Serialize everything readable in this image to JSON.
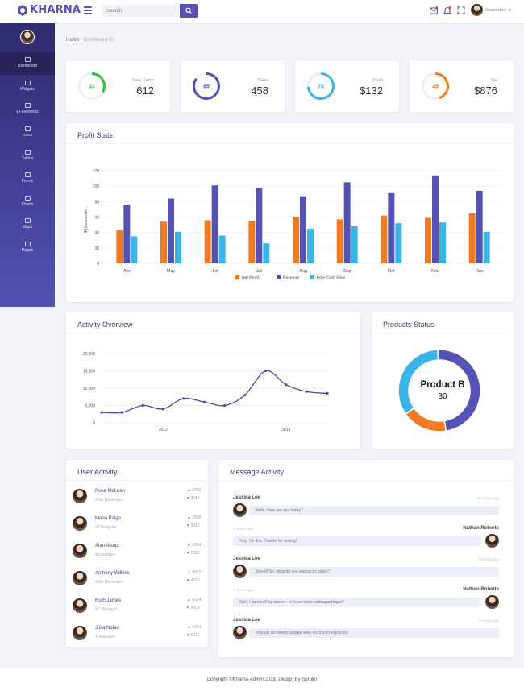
{
  "app": {
    "brand": "KHARNA",
    "search_placeholder": "Search",
    "user": "Jessica Lee"
  },
  "sidebar": {
    "items": [
      "Dashboard",
      "Widgets",
      "UI Elements",
      "Icons",
      "Tables",
      "Forms",
      "Charts",
      "Maps",
      "Pages"
    ]
  },
  "breadcrumb": {
    "home": "Home",
    "current": "Dashboard 01"
  },
  "stats": [
    {
      "label": "New Users",
      "value": "612",
      "ring": "33",
      "color": "#2fbf3f",
      "pct": 0.33
    },
    {
      "label": "Sales",
      "value": "458",
      "ring": "85",
      "color": "#5552b5",
      "pct": 0.85
    },
    {
      "label": "Profit",
      "value": "$132",
      "ring": "74",
      "color": "#3bb5e8",
      "pct": 0.74
    },
    {
      "label": "Tax",
      "value": "$876",
      "ring": "45",
      "color": "#f07b23",
      "pct": 0.45
    }
  ],
  "profit": {
    "title": "Profit Stats",
    "chart_data": {
      "type": "bar",
      "categories": [
        "Apr",
        "May",
        "Jun",
        "Jul",
        "Aug",
        "Sep",
        "Oct",
        "Nov",
        "Dec"
      ],
      "series": [
        {
          "name": "Net Profit",
          "color": "#f07b23",
          "values": [
            43,
            54,
            56,
            55,
            60,
            57,
            62,
            59,
            65
          ]
        },
        {
          "name": "Revenue",
          "color": "#5552b5",
          "values": [
            76,
            84,
            101,
            98,
            87,
            105,
            91,
            114,
            94
          ]
        },
        {
          "name": "Free Cash Flow",
          "color": "#3bb5e8",
          "values": [
            35,
            41,
            36,
            26,
            45,
            48,
            52,
            53,
            41
          ]
        }
      ],
      "ylabel": "$ (thousands)",
      "yticks": [
        "0",
        "20",
        "40",
        "60",
        "80",
        "100",
        "120"
      ],
      "ylim": [
        0,
        120
      ]
    }
  },
  "activity": {
    "title": "Activity Overview",
    "chart_data": {
      "type": "line",
      "x": [
        2011.0,
        2011.33,
        2011.67,
        2012.0,
        2012.33,
        2012.67,
        2013.0,
        2013.33,
        2013.67,
        2014.0,
        2014.33,
        2014.67
      ],
      "values": [
        3000,
        3000,
        5000,
        4000,
        7000,
        6000,
        5000,
        8000,
        15000,
        11000,
        9000,
        8500
      ],
      "color": "#4c48b0",
      "yticks": [
        "0",
        "5,000",
        "10,000",
        "15,000",
        "20,000"
      ],
      "xticks": [
        "2012",
        "2014"
      ],
      "ylim": [
        0,
        20000
      ]
    }
  },
  "products": {
    "title": "Products Status",
    "center_name": "Product B",
    "center_value": "30",
    "chart_data": {
      "type": "pie",
      "slices": [
        {
          "color": "#5552b5",
          "value": 48
        },
        {
          "color": "#f07b23",
          "value": 18
        },
        {
          "color": "#3bb5e8",
          "value": 34
        }
      ]
    }
  },
  "users": {
    "title": "User Activity",
    "rows": [
      {
        "name": "Rose McLean",
        "role": "Web Developer",
        "up": "3750",
        "down": "3745"
      },
      {
        "name": "Maria Paige",
        "role": "UI Designer",
        "up": "2650",
        "down": "3646"
      },
      {
        "name": "Alan Alsop",
        "role": "Accountant",
        "up": "5334",
        "down": "2582"
      },
      {
        "name": "Anthony Wilkins",
        "role": "Web Developer",
        "up": "4822",
        "down": "4812"
      },
      {
        "name": "Ruth James",
        "role": "Sr. Manager",
        "up": "4324",
        "down": "3425"
      },
      {
        "name": "Julia Nolan",
        "role": "Jr.Manager",
        "up": "6754",
        "down": "6576"
      }
    ]
  },
  "messages": {
    "title": "Message Activity",
    "items": [
      {
        "name": "Jessica Lee",
        "time": "10 Hours Ago",
        "text": "Hello. How are you today?",
        "side": "left"
      },
      {
        "name": "Nathan Roberts",
        "time": "9 Hours Ago",
        "text": "Hey! I'm fine. Thanks for asking!",
        "side": "right"
      },
      {
        "name": "Jessica Lee",
        "time": "8 Hours Ago",
        "text": "Sweet! So, what do you wanna do today?",
        "side": "left"
      },
      {
        "name": "Nathan Roberts",
        "time": "7 Hours Ago",
        "text": "Nah, I dunno. Play soccer.. or learn more coding perhaps?",
        "side": "right"
      },
      {
        "name": "Jessica Lee",
        "time": "6 Hours Ago",
        "text": "et quasi architecto beatae vitae dicta sunt explicabo.",
        "side": "left"
      }
    ]
  },
  "footer": "Copyright ©Kharna-Admin 2018. Design By Spruko"
}
